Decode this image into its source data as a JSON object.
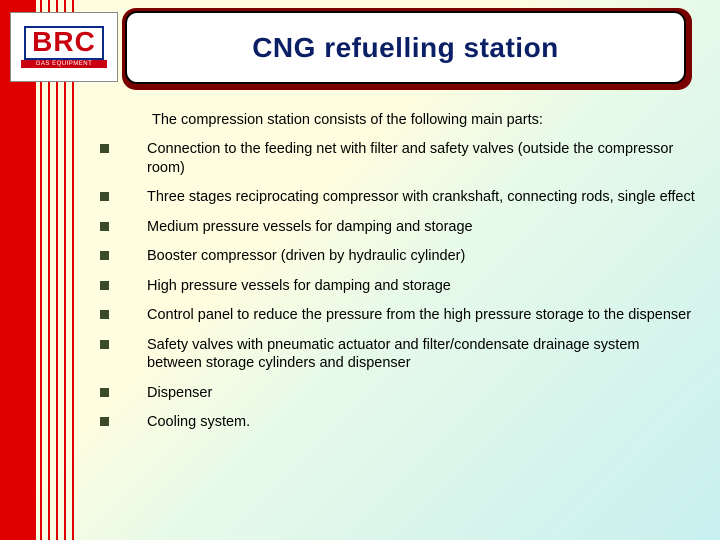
{
  "logo": {
    "text": "BRC",
    "subtext": "GAS EQUIPMENT",
    "text_color": "#c9000f",
    "border_color": "#0a2a8a",
    "sub_bg": "#c9000f"
  },
  "title": {
    "text": "CNG refuelling station",
    "fontsize": 28,
    "color": "#0b1f66",
    "frame_bg": "#7a0000",
    "inner_bg": "#ffffff",
    "inner_border": "#000000"
  },
  "intro": "The compression station consists of the following main parts:",
  "bullets": [
    "Connection to the feeding net with filter and safety valves (outside the compressor room)",
    "Three stages reciprocating compressor with crankshaft, connecting rods, single effect",
    "Medium pressure vessels for damping and storage",
    "Booster compressor (driven by hydraulic cylinder)",
    "High pressure vessels for damping and storage",
    "Control panel to reduce the pressure from the high pressure storage to the dispenser",
    "Safety valves with pneumatic actuator and filter/condensate drainage system between storage cylinders and dispenser",
    "Dispenser",
    "Cooling system."
  ],
  "style": {
    "slide_width": 720,
    "slide_height": 540,
    "background_gradient": [
      "#fffde0",
      "#e8fae8",
      "#c8f0f0"
    ],
    "red_bar_color": "#e10000",
    "red_bar_width": 36,
    "pinstripe_color": "#e10000",
    "pinstripe_count": 5,
    "bullet_square_color": "#3a4a2a",
    "bullet_square_size": 9,
    "body_fontsize": 14.5,
    "body_color": "#000000"
  }
}
